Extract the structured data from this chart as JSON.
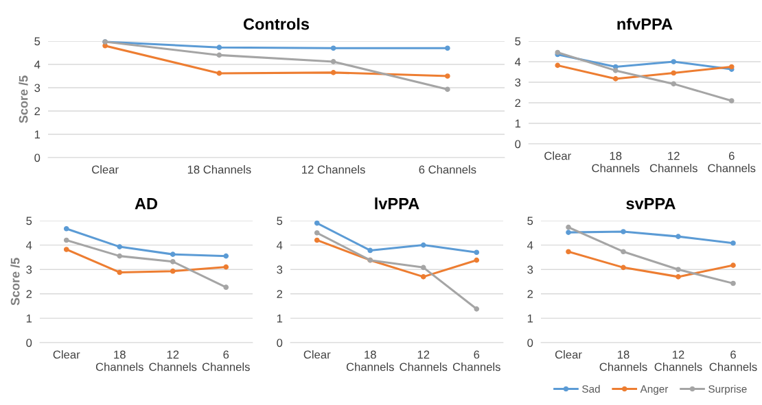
{
  "chart_data": [
    {
      "type": "line",
      "title": "Controls",
      "ylabel": "Score /5",
      "categories": [
        "Clear",
        "18 Channels",
        "12 Channels",
        "6 Channels"
      ],
      "ylim": [
        0,
        5
      ],
      "yticks": [
        0,
        1,
        2,
        3,
        4,
        5
      ],
      "grid": "y",
      "marker": "circle",
      "legend": false,
      "series": [
        {
          "color": "#5b9bd5",
          "values": [
            4.97,
            4.73,
            4.7,
            4.7
          ]
        },
        {
          "color": "#ed7d31",
          "values": [
            4.8,
            3.62,
            3.65,
            3.5
          ]
        },
        {
          "color": "#a5a5a5",
          "values": [
            4.97,
            4.4,
            4.12,
            2.93
          ]
        }
      ]
    },
    {
      "type": "line",
      "title": "nfvPPA",
      "categories": [
        "Clear",
        "18\nChannels",
        "12\nChannels",
        "6\nChannels"
      ],
      "ylim": [
        0,
        5
      ],
      "yticks": [
        0,
        1,
        2,
        3,
        4,
        5
      ],
      "grid": "y",
      "marker": "circle",
      "legend": false,
      "series": [
        {
          "color": "#5b9bd5",
          "values": [
            4.35,
            3.75,
            4.0,
            3.63
          ]
        },
        {
          "color": "#ed7d31",
          "values": [
            3.82,
            3.17,
            3.45,
            3.75
          ]
        },
        {
          "color": "#a5a5a5",
          "values": [
            4.45,
            3.57,
            2.92,
            2.1
          ]
        }
      ]
    },
    {
      "type": "line",
      "title": "AD",
      "ylabel": "Score /5",
      "categories": [
        "Clear",
        "18\nChannels",
        "12\nChannels",
        "6\nChannels"
      ],
      "ylim": [
        0,
        5
      ],
      "yticks": [
        0,
        1,
        2,
        3,
        4,
        5
      ],
      "grid": "y",
      "marker": "circle",
      "legend": false,
      "series": [
        {
          "color": "#5b9bd5",
          "values": [
            4.67,
            3.93,
            3.62,
            3.55
          ]
        },
        {
          "color": "#ed7d31",
          "values": [
            3.82,
            2.88,
            2.93,
            3.1
          ]
        },
        {
          "color": "#a5a5a5",
          "values": [
            4.2,
            3.55,
            3.32,
            2.27
          ]
        }
      ]
    },
    {
      "type": "line",
      "title": "lvPPA",
      "categories": [
        "Clear",
        "18\nChannels",
        "12\nChannels",
        "6\nChannels"
      ],
      "ylim": [
        0,
        5
      ],
      "yticks": [
        0,
        1,
        2,
        3,
        4,
        5
      ],
      "grid": "y",
      "marker": "circle",
      "legend": false,
      "series": [
        {
          "color": "#5b9bd5",
          "values": [
            4.9,
            3.78,
            4.0,
            3.7
          ]
        },
        {
          "color": "#ed7d31",
          "values": [
            4.2,
            3.38,
            2.7,
            3.38
          ]
        },
        {
          "color": "#a5a5a5",
          "values": [
            4.5,
            3.38,
            3.08,
            1.38
          ]
        }
      ]
    },
    {
      "type": "line",
      "title": "svPPA",
      "categories": [
        "Clear",
        "18\nChannels",
        "12\nChannels",
        "6\nChannels"
      ],
      "ylim": [
        0,
        5
      ],
      "yticks": [
        0,
        1,
        2,
        3,
        4,
        5
      ],
      "grid": "y",
      "marker": "circle",
      "legend": "bottom",
      "series": [
        {
          "name": "Sad",
          "color": "#5b9bd5",
          "values": [
            4.52,
            4.55,
            4.35,
            4.08
          ]
        },
        {
          "name": "Anger",
          "color": "#ed7d31",
          "values": [
            3.73,
            3.08,
            2.7,
            3.17
          ]
        },
        {
          "name": "Surprise",
          "color": "#a5a5a5",
          "values": [
            4.73,
            3.73,
            3.0,
            2.43
          ]
        }
      ]
    }
  ]
}
